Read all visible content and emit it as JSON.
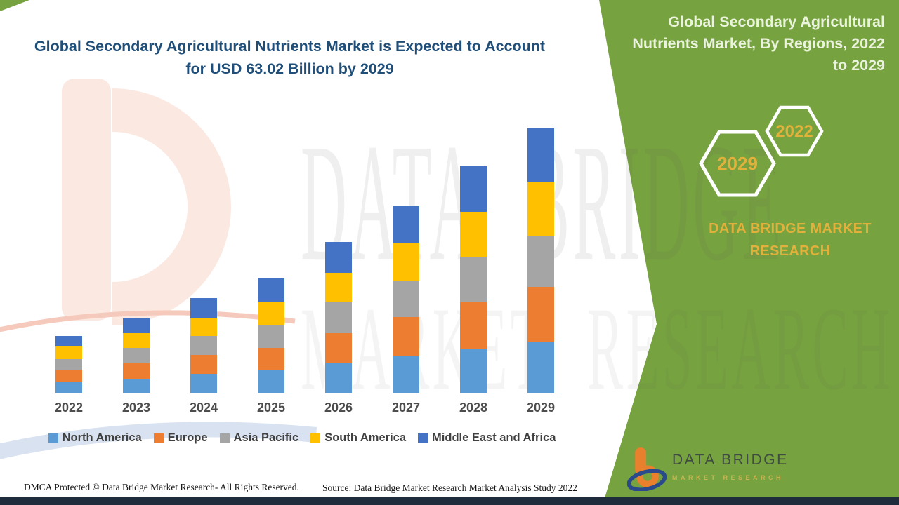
{
  "header": {
    "chart_title": "Global Secondary Agricultural Nutrients Market is Expected to Account for USD 63.02 Billion by 2029"
  },
  "side_panel": {
    "title": "Global Secondary Agricultural Nutrients Market, By Regions, 2022 to 2029",
    "hexagon_back_year": "2022",
    "hexagon_front_year": "2029",
    "brand_caption": "DATA BRIDGE MARKET RESEARCH",
    "logo_brand": "DATA BRIDGE",
    "logo_tagline": "MARKET RESEARCH",
    "background_color": "#76A23F",
    "accent_gold": "#E2B13C"
  },
  "watermark": {
    "line1": "DATA BRIDGE",
    "line2": "MARKET RESEARCH"
  },
  "footer": {
    "dmca": "DMCA Protected © Data Bridge Market Research- All Rights Reserved.",
    "source": "Source: Data Bridge Market Research Market Analysis Study 2022"
  },
  "chart_data": {
    "type": "bar",
    "stacked": true,
    "title": "Global Secondary Agricultural Nutrients Market, By Regions, 2022 to 2029",
    "unit": "USD Billion (values estimated from bar heights)",
    "categories": [
      "2022",
      "2023",
      "2024",
      "2025",
      "2026",
      "2027",
      "2028",
      "2029"
    ],
    "series": [
      {
        "name": "North America",
        "color": "#5B9BD5",
        "values": [
          2.7,
          3.4,
          4.7,
          5.7,
          7.2,
          9.0,
          10.7,
          12.4
        ]
      },
      {
        "name": "Europe",
        "color": "#ED7D31",
        "values": [
          3.0,
          3.7,
          4.5,
          5.2,
          7.2,
          9.2,
          10.9,
          12.9
        ]
      },
      {
        "name": "Asia Pacific",
        "color": "#A5A5A5",
        "values": [
          2.5,
          3.8,
          4.5,
          5.4,
          7.2,
          8.6,
          10.9,
          12.2
        ]
      },
      {
        "name": "South America",
        "color": "#FFC000",
        "values": [
          2.9,
          3.4,
          4.2,
          5.5,
          7.0,
          8.9,
          10.7,
          12.6
        ]
      },
      {
        "name": "Middle East and Africa",
        "color": "#4472C4",
        "values": [
          2.5,
          3.5,
          4.7,
          5.5,
          7.4,
          9.0,
          10.9,
          12.9
        ]
      }
    ],
    "totals_by_year": [
      13.6,
      17.8,
      22.6,
      27.3,
      36.0,
      44.7,
      54.1,
      63.02
    ],
    "annotation_total_2029": 63.02,
    "ylim": [
      0,
      65
    ],
    "grid": false,
    "y_axis_visible": false,
    "legend_position": "bottom"
  }
}
